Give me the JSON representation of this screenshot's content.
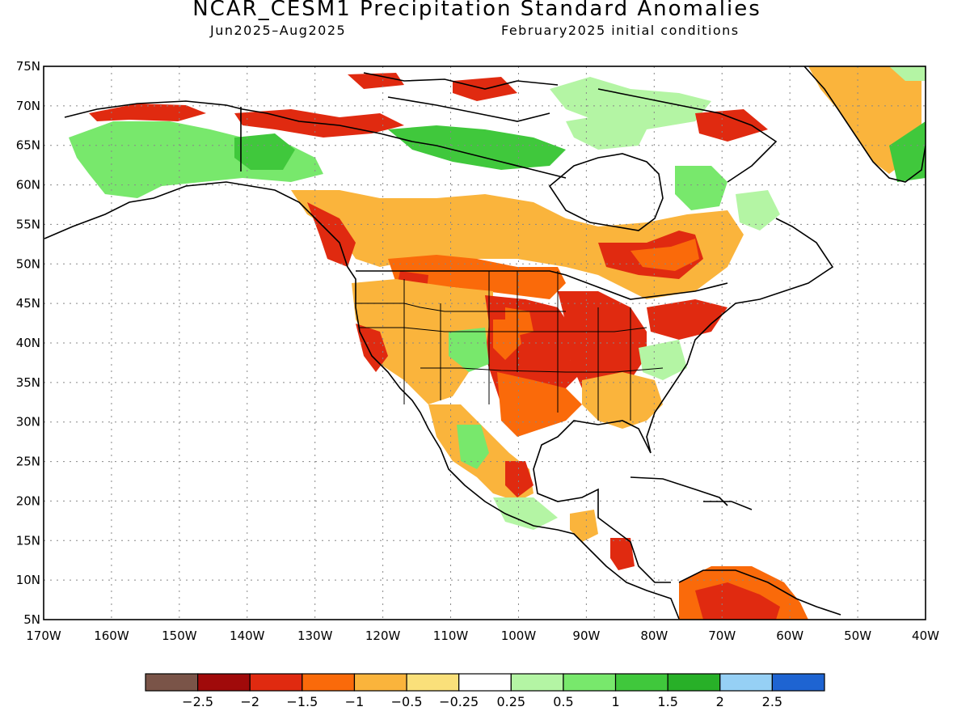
{
  "title": "NCAR_CESM1 Precipitation Standard Anomalies",
  "subtitle_left": "Jun2025–Aug2025",
  "subtitle_right": "February2025 initial conditions",
  "map": {
    "lat_labels": [
      "75N",
      "70N",
      "65N",
      "60N",
      "55N",
      "50N",
      "45N",
      "40N",
      "35N",
      "30N",
      "25N",
      "20N",
      "15N",
      "10N",
      "5N"
    ],
    "lon_labels": [
      "170W",
      "160W",
      "150W",
      "140W",
      "130W",
      "120W",
      "110W",
      "100W",
      "90W",
      "80W",
      "70W",
      "60W",
      "50W",
      "40W"
    ],
    "grid": true
  },
  "colorbar": {
    "colors": [
      "#7a5448",
      "#a00a0a",
      "#e02a10",
      "#fa6a0a",
      "#fab43c",
      "#fae07a",
      "#ffffff",
      "#b4f5a4",
      "#78e86c",
      "#40c83c",
      "#28b028",
      "#96d0f5",
      "#1e64d2"
    ],
    "labels": [
      "−2.5",
      "−2",
      "−1.5",
      "−1",
      "−0.5",
      "−0.25",
      "0.25",
      "0.5",
      "1",
      "1.5",
      "2",
      "2.5"
    ]
  },
  "anomaly_regions": [
    {
      "name": "alaska-wet",
      "color": "#78e86c"
    },
    {
      "name": "yukon-wet",
      "color": "#40c83c"
    },
    {
      "name": "northern-canada-wet",
      "color": "#40c83c"
    },
    {
      "name": "quebec-wet",
      "color": "#78e86c"
    },
    {
      "name": "greenland-dry",
      "color": "#fab43c"
    },
    {
      "name": "central-canada-dry",
      "color": "#fab43c"
    },
    {
      "name": "northern-plains-dry",
      "color": "#fa6a0a"
    },
    {
      "name": "central-plains-dry",
      "color": "#e02a10"
    },
    {
      "name": "southern-plains-dry",
      "color": "#fa6a0a"
    },
    {
      "name": "southwest-wet",
      "color": "#78e86c"
    },
    {
      "name": "west-dry",
      "color": "#fab43c"
    },
    {
      "name": "ontario-dry",
      "color": "#e02a10"
    },
    {
      "name": "southeast-dry",
      "color": "#fab43c"
    },
    {
      "name": "mexico-dry",
      "color": "#fab43c"
    },
    {
      "name": "mexico-wet",
      "color": "#78e86c"
    },
    {
      "name": "central-america-dry",
      "color": "#fab43c"
    },
    {
      "name": "venezuela-dry",
      "color": "#fa6a0a"
    }
  ]
}
